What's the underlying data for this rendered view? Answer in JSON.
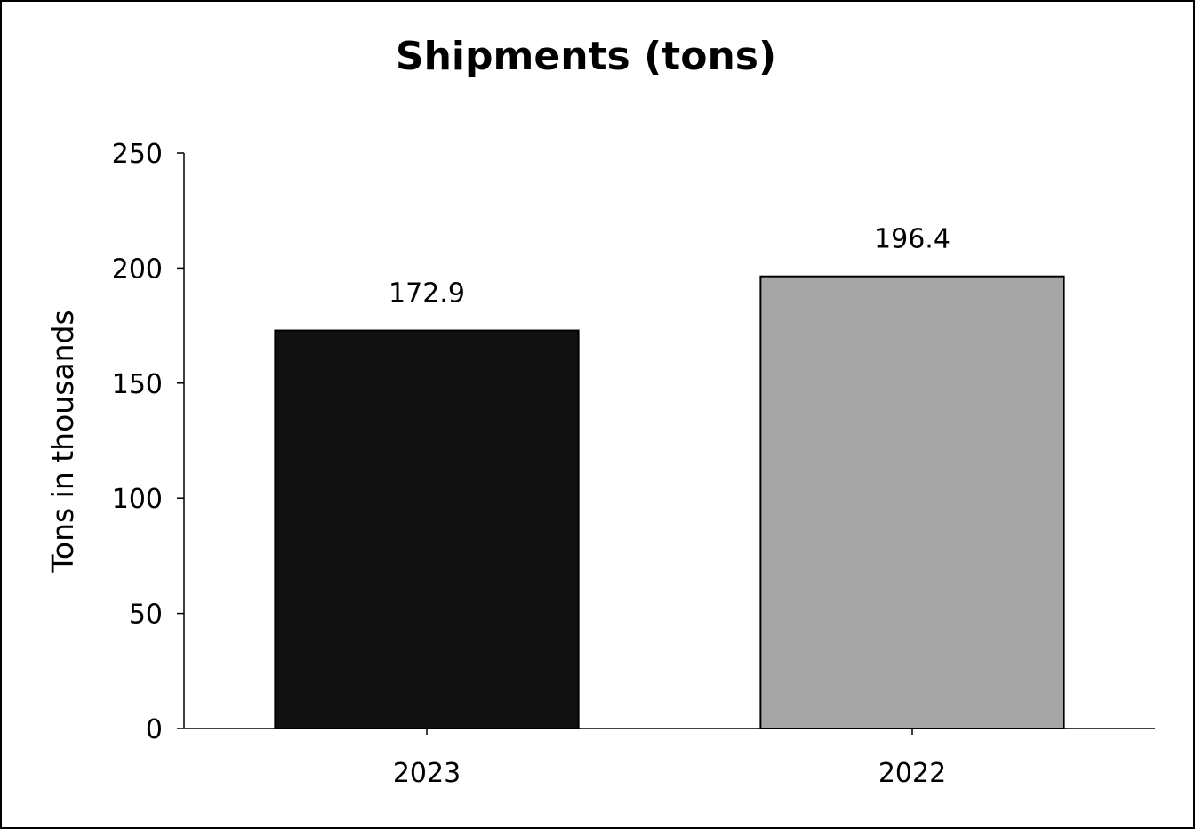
{
  "chart_data": {
    "type": "bar",
    "title": "Shipments (tons)",
    "xlabel": "",
    "ylabel": "Tons in thousands",
    "categories": [
      "2023",
      "2022"
    ],
    "values": [
      172.9,
      196.4
    ],
    "data_labels": [
      "172.9",
      "196.4"
    ],
    "bar_colors": [
      "#111111",
      "#a6a6a6"
    ],
    "ylim": [
      0,
      250
    ],
    "yticks": [
      0,
      50,
      100,
      150,
      200,
      250
    ],
    "grid": false,
    "legend": "none"
  }
}
